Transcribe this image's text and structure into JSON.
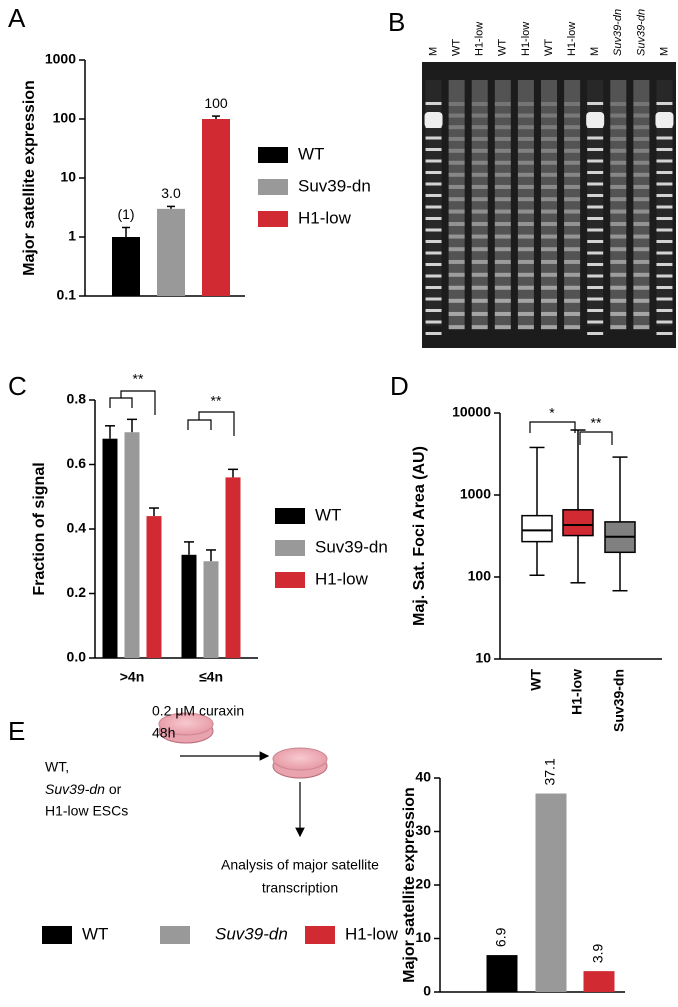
{
  "chart_data": [
    {
      "panel": "A",
      "type": "bar",
      "ylabel": "Major satellite expression",
      "log_scale": true,
      "ylim": [
        0.1,
        1000
      ],
      "yticks": [
        0.1,
        1,
        10,
        100,
        1000
      ],
      "series": [
        {
          "name": "WT",
          "color": "#000000",
          "values": [
            1
          ],
          "errors": [
            0.45
          ],
          "value_labels": [
            "(1)"
          ]
        },
        {
          "name": "Suv39-dn",
          "color": "#999999",
          "values": [
            3.0
          ],
          "errors": [
            0.3
          ],
          "value_labels": [
            "3.0"
          ]
        },
        {
          "name": "H1-low",
          "color": "#d12a33",
          "values": [
            100
          ],
          "errors": [
            12
          ],
          "value_labels": [
            "100"
          ]
        }
      ]
    },
    {
      "panel": "B",
      "type": "image",
      "lane_labels": [
        "M",
        "WT",
        "H1-low",
        "WT",
        "H1-low",
        "WT",
        "H1-low",
        "M",
        "Suv39-dn",
        "Suv39-dn",
        "M"
      ]
    },
    {
      "panel": "C",
      "type": "grouped_bar",
      "ylabel": "Fraction of signal",
      "categories": [
        ">4n",
        "≤4n"
      ],
      "ylim": [
        0,
        0.8
      ],
      "yticks": [
        {
          "value": 0,
          "label": "0.0"
        },
        0.2,
        0.4,
        0.6,
        0.8
      ],
      "series": [
        {
          "name": "WT",
          "color": "#000000",
          "values": [
            0.68,
            0.32
          ],
          "errors": [
            0.04,
            0.04
          ]
        },
        {
          "name": "Suv39-dn",
          "color": "#999999",
          "values": [
            0.7,
            0.3
          ],
          "errors": [
            0.04,
            0.035
          ]
        },
        {
          "name": "H1-low",
          "color": "#d12a33",
          "values": [
            0.44,
            0.56
          ],
          "errors": [
            0.025,
            0.025
          ]
        }
      ],
      "annotations": [
        "**",
        "**"
      ]
    },
    {
      "panel": "D",
      "type": "box",
      "ylabel": "Maj. Sat. Foci Area (AU)",
      "log_scale": true,
      "ylim": [
        10,
        10000
      ],
      "yticks": [
        10,
        100,
        1000,
        10000
      ],
      "categories": [
        "WT",
        "H1-low",
        "Suv39-dn"
      ],
      "colors": [
        "#ffffff",
        "#d12a33",
        "#808080"
      ],
      "min": [
        105,
        85,
        68
      ],
      "q1": [
        270,
        320,
        200
      ],
      "median": [
        370,
        430,
        310
      ],
      "q3": [
        560,
        660,
        470
      ],
      "max": [
        3800,
        6200,
        2900
      ],
      "annotations": [
        "*",
        "**"
      ]
    },
    {
      "panel": "E",
      "type": "bar",
      "ylabel": "Major satellite expression",
      "ylim": [
        0,
        40
      ],
      "yticks": [
        0,
        10,
        20,
        30,
        40
      ],
      "series": [
        {
          "name": "WT",
          "color": "#000000",
          "values": [
            6.9
          ]
        },
        {
          "name": "Suv39-dn",
          "color": "#999999",
          "values": [
            37.1
          ]
        },
        {
          "name": "H1-low",
          "color": "#d12a33",
          "values": [
            3.9
          ]
        }
      ]
    }
  ],
  "diagram": {
    "treatment": "0.2 μM curaxin",
    "duration": "48h",
    "cells_1": "WT,",
    "cells_2": "Suv39-dn",
    "cells_3": "or",
    "cells_4": "H1-low ESCs",
    "readout_1": "Analysis of major satellite",
    "readout_2": "transcription"
  }
}
